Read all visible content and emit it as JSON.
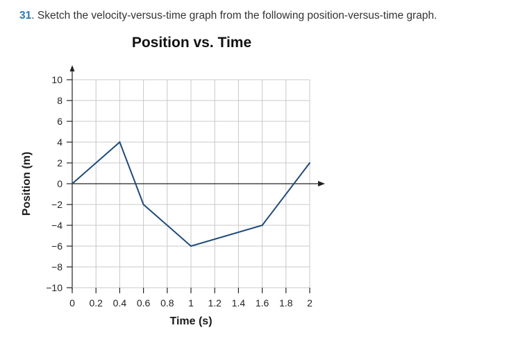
{
  "problem": {
    "number": "31",
    "text": ". Sketch the velocity-versus-time graph from the following position-versus-time graph."
  },
  "colors": {
    "problem_number": "#2b7ab8",
    "series_line": "#1f4b7a",
    "grid": "#c8c8c8",
    "axis": "#222222"
  },
  "chart_data": {
    "type": "line",
    "title": "Position vs. Time",
    "xlabel": "Time (s)",
    "ylabel": "Position (m)",
    "xlim": [
      0,
      2
    ],
    "ylim": [
      -10,
      10
    ],
    "x_ticks": [
      "0",
      "0.2",
      "0.4",
      "0.6",
      "0.8",
      "1",
      "1.2",
      "1.4",
      "1.6",
      "1.8",
      "2"
    ],
    "y_ticks": [
      "10",
      "8",
      "6",
      "4",
      "2",
      "0",
      "−2",
      "−4",
      "−6",
      "−8",
      "−10"
    ],
    "grid": true,
    "legend": "none",
    "series": [
      {
        "x": [
          0,
          0.4,
          0.6,
          1.0,
          1.6,
          2.0
        ],
        "y": [
          0,
          4,
          -2,
          -6,
          -4,
          2
        ]
      }
    ]
  }
}
